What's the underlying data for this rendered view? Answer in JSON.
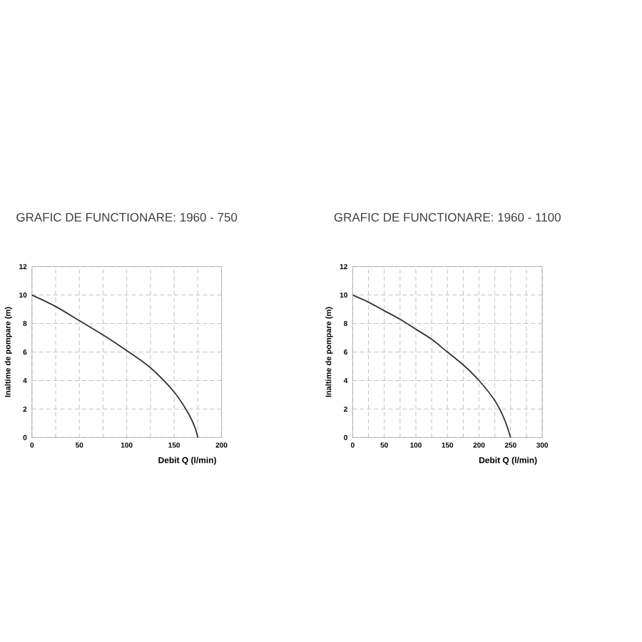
{
  "chart_data": [
    {
      "type": "line",
      "title": "GRAFIC DE FUNCTIONARE: 1960 - 750",
      "xlabel": "Debit  Q (l/min)",
      "ylabel": "Inaltime de pompare (m)",
      "xlim": [
        0,
        200
      ],
      "ylim": [
        0,
        12
      ],
      "xticks": [
        0,
        {
          "value": 25,
          "label": null
        },
        50,
        {
          "value": 75,
          "label": null
        },
        100,
        {
          "value": 125,
          "label": null
        },
        150,
        {
          "value": 175,
          "label": null
        },
        200
      ],
      "yticks": [
        0,
        2,
        4,
        6,
        8,
        10,
        12
      ],
      "grid": true,
      "x": [
        0,
        25,
        50,
        75,
        100,
        125,
        150,
        165,
        172,
        175
      ],
      "series": [
        {
          "color": "#333333",
          "values": [
            10,
            9.2,
            8.2,
            7.2,
            6.1,
            4.9,
            3.2,
            1.7,
            0.7,
            0
          ]
        }
      ]
    },
    {
      "type": "line",
      "title": "GRAFIC DE FUNCTIONARE: 1960 - 1100",
      "xlabel": "Debit  Q (l/min)",
      "ylabel": "Inaltime de pompare (m)",
      "xlim": [
        0,
        300
      ],
      "ylim": [
        0,
        12
      ],
      "xticks": [
        0,
        {
          "value": 25,
          "label": null
        },
        50,
        {
          "value": 75,
          "label": null
        },
        100,
        {
          "value": 125,
          "label": null
        },
        150,
        {
          "value": 175,
          "label": null
        },
        200,
        {
          "value": 225,
          "label": null
        },
        250,
        {
          "value": 275,
          "label": null
        },
        300
      ],
      "yticks": [
        0,
        2,
        4,
        6,
        8,
        10,
        12
      ],
      "grid": true,
      "x": [
        0,
        25,
        50,
        75,
        100,
        125,
        150,
        175,
        200,
        225,
        240,
        250
      ],
      "series": [
        {
          "color": "#333333",
          "values": [
            10,
            9.5,
            8.9,
            8.3,
            7.6,
            6.9,
            6.0,
            5.1,
            4.0,
            2.6,
            1.3,
            0
          ]
        }
      ]
    }
  ]
}
